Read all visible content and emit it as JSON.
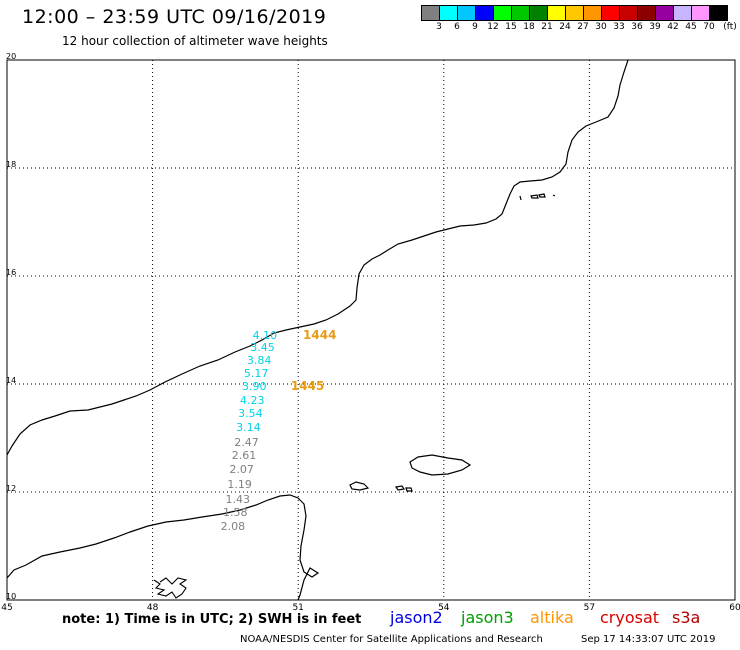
{
  "header": {
    "title": "12:00 – 23:59 UTC 09/16/2019",
    "subtitle": "12 hour collection of altimeter wave heights"
  },
  "legend": {
    "unit": "(ft)",
    "bins": [
      {
        "label": "3",
        "color": "#808080"
      },
      {
        "label": "6",
        "color": "#00ffff"
      },
      {
        "label": "9",
        "color": "#00c8ff"
      },
      {
        "label": "12",
        "color": "#0000ff"
      },
      {
        "label": "15",
        "color": "#00ff00"
      },
      {
        "label": "18",
        "color": "#00c800"
      },
      {
        "label": "21",
        "color": "#008200"
      },
      {
        "label": "24",
        "color": "#ffff00"
      },
      {
        "label": "27",
        "color": "#ffc800"
      },
      {
        "label": "30",
        "color": "#ff9600"
      },
      {
        "label": "33",
        "color": "#ff0000"
      },
      {
        "label": "36",
        "color": "#c80000"
      },
      {
        "label": "39",
        "color": "#8c0000"
      },
      {
        "label": "42",
        "color": "#9600a0"
      },
      {
        "label": "45",
        "color": "#c8b4ff"
      },
      {
        "label": "70",
        "color": "#ff96ff"
      },
      {
        "label": "",
        "color": "#000000"
      }
    ]
  },
  "axes": {
    "lat_ticks": [
      "20",
      "18",
      "16",
      "14",
      "12",
      "10"
    ],
    "lon_ticks": [
      "45",
      "48",
      "51",
      "54",
      "57",
      "60"
    ]
  },
  "wave_heights": [
    {
      "value": "4.10",
      "color": "#00d2e6",
      "lat": 14.88,
      "lon": 50.35
    },
    {
      "value": "3.45",
      "color": "#00d2e6",
      "lat": 14.67,
      "lon": 50.3
    },
    {
      "value": "3.84",
      "color": "#00d2e6",
      "lat": 14.43,
      "lon": 50.23
    },
    {
      "value": "5.17",
      "color": "#00d2e6",
      "lat": 14.19,
      "lon": 50.17
    },
    {
      "value": "3.90",
      "color": "#00d2e6",
      "lat": 13.95,
      "lon": 50.13
    },
    {
      "value": "4.23",
      "color": "#00d2e6",
      "lat": 13.69,
      "lon": 50.09
    },
    {
      "value": "3.54",
      "color": "#00d2e6",
      "lat": 13.45,
      "lon": 50.05
    },
    {
      "value": "3.14",
      "color": "#00d2e6",
      "lat": 13.18,
      "lon": 50.01
    },
    {
      "value": "2.47",
      "color": "#808080",
      "lat": 12.9,
      "lon": 49.97
    },
    {
      "value": "2.61",
      "color": "#808080",
      "lat": 12.66,
      "lon": 49.92
    },
    {
      "value": "2.07",
      "color": "#808080",
      "lat": 12.41,
      "lon": 49.87
    },
    {
      "value": "1.19",
      "color": "#808080",
      "lat": 12.13,
      "lon": 49.83
    },
    {
      "value": "1.43",
      "color": "#808080",
      "lat": 11.86,
      "lon": 49.79
    },
    {
      "value": "1.58",
      "color": "#808080",
      "lat": 11.62,
      "lon": 49.74
    },
    {
      "value": "2.08",
      "color": "#808080",
      "lat": 11.36,
      "lon": 49.69
    }
  ],
  "pass_times": [
    {
      "label": "1444",
      "lat": 14.88,
      "lon": 51.1
    },
    {
      "label": "1445",
      "lat": 13.95,
      "lon": 50.85
    }
  ],
  "footer": {
    "note": "note: 1) Time is in UTC; 2) SWH is in feet",
    "satellites": [
      {
        "name": "jason2",
        "color": "#0000dc"
      },
      {
        "name": "jason3",
        "color": "#00a000"
      },
      {
        "name": "altika",
        "color": "#ff9600"
      },
      {
        "name": "cryosat",
        "color": "#dc0000"
      },
      {
        "name": "s3a",
        "color": "#b40000"
      }
    ],
    "credit": "NOAA/NESDIS Center for Satellite Applications and Research",
    "timestamp": "Sep 17 14:33:07 UTC 2019"
  }
}
